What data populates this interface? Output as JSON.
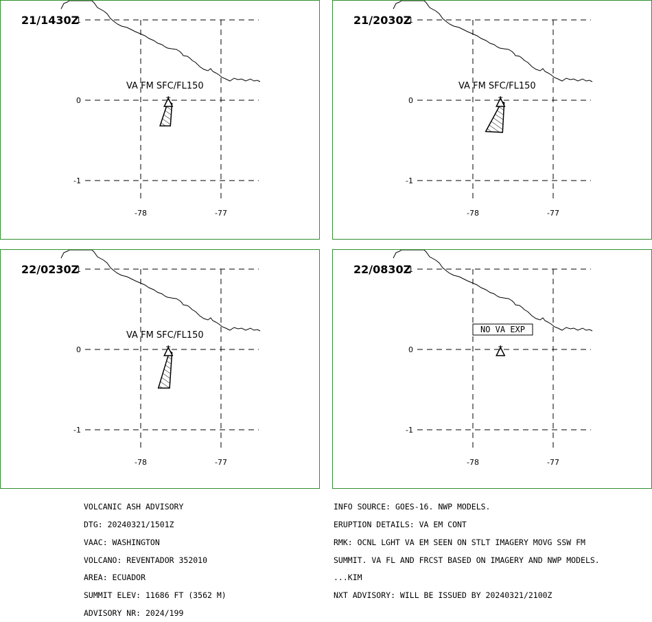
{
  "panels": [
    {
      "valid_time": "21/1430Z",
      "label": "VA FM SFC/FL150",
      "no_va": null,
      "plume": [
        [
          -77.66,
          -0.02
        ],
        [
          -77.61,
          -0.04
        ],
        [
          -77.63,
          -0.32
        ],
        [
          -77.76,
          -0.32
        ]
      ]
    },
    {
      "valid_time": "21/2030Z",
      "label": "VA FM SFC/FL150",
      "no_va": null,
      "plume": [
        [
          -77.64,
          -0.02
        ],
        [
          -77.61,
          -0.03
        ],
        [
          -77.63,
          -0.4
        ],
        [
          -77.84,
          -0.39
        ]
      ]
    },
    {
      "valid_time": "22/0230Z",
      "label": "VA FM SFC/FL150",
      "no_va": null,
      "plume": [
        [
          -77.64,
          -0.02
        ],
        [
          -77.61,
          -0.04
        ],
        [
          -77.64,
          -0.48
        ],
        [
          -77.78,
          -0.48
        ]
      ]
    },
    {
      "valid_time": "22/0830Z",
      "label": null,
      "no_va": "NO VA EXP",
      "plume": null
    }
  ],
  "map": {
    "lat_ticks": [
      "1",
      "0",
      "-1"
    ],
    "lon_ticks": [
      "-78",
      "-77"
    ],
    "volcano": {
      "lon": -77.656,
      "lat": -0.077
    },
    "colors": {
      "frame": "#2f8f2f",
      "ink": "#000000"
    }
  },
  "advisory_left": [
    "VOLCANIC ASH ADVISORY",
    "DTG: 20240321/1501Z",
    "VAAC: WASHINGTON",
    "VOLCANO: REVENTADOR 352010",
    "AREA: ECUADOR",
    "SUMMIT ELEV: 11686 FT (3562 M)",
    "ADVISORY NR: 2024/199"
  ],
  "advisory_right": [
    "INFO SOURCE: GOES-16. NWP MODELS.",
    "ERUPTION DETAILS: VA EM CONT",
    "RMK: OCNL LGHT VA EM SEEN ON STLT IMAGERY MOVG SSW FM",
    "SUMMIT. VA FL AND FRCST BASED ON IMAGERY AND NWP MODELS.",
    "...KIM",
    "NXT ADVISORY: WILL BE ISSUED BY 20240321/2100Z"
  ]
}
